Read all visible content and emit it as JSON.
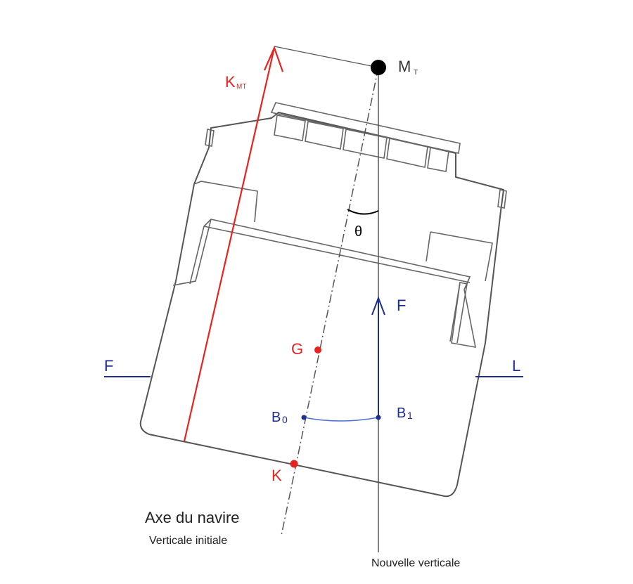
{
  "labels": {
    "metacenter": "M",
    "metacenter_sub": "T",
    "kmt": "K",
    "kmt_sub": "MT",
    "theta": "θ",
    "force": "F",
    "waterline_left": "F",
    "waterline_right": "L",
    "gravity": "G",
    "b0": "B",
    "b0_sub": "0",
    "b1": "B",
    "b1_sub": "1",
    "keel": "K",
    "ship_axis": "Axe du navire",
    "initial_vertical": "Verticale initiale",
    "new_vertical": "Nouvelle verticale"
  },
  "colors": {
    "red": "#e8231f",
    "blue": "#1f2e8c",
    "blue_light": "#4a6fd6",
    "gray": "#555555",
    "black": "#000000"
  }
}
